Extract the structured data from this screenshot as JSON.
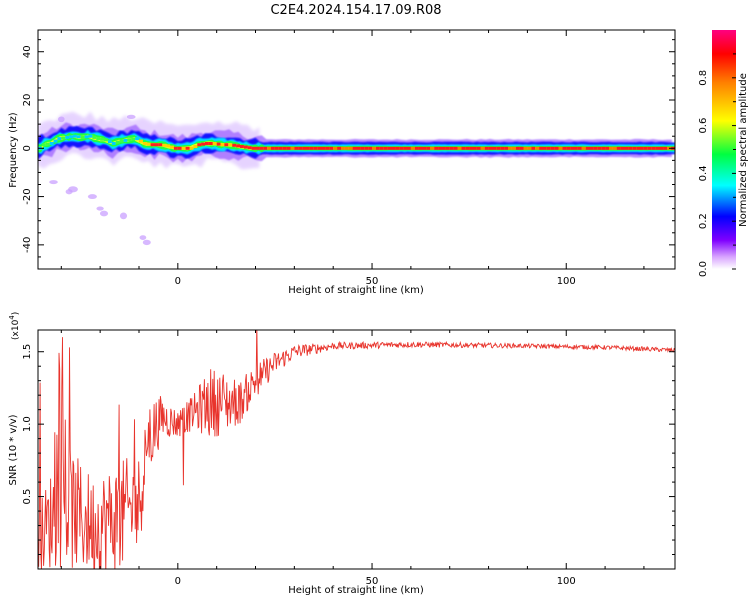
{
  "title": "C2E4.2024.154.17.09.R08",
  "chart_data": [
    {
      "type": "heatmap",
      "xlabel": "Height of straight line (km)",
      "ylabel": "Frequency (Hz)",
      "xlim": [
        -36,
        128
      ],
      "ylim": [
        -50,
        49
      ],
      "xticks": [
        0,
        50,
        100
      ],
      "yticks": [
        40,
        20,
        0,
        -20,
        -40
      ],
      "colorbar": {
        "label": "Normalized spectral amplitude",
        "range": [
          0,
          1
        ],
        "ticks": [
          "0.0",
          "0.2",
          "0.4",
          "0.6",
          "0.8"
        ],
        "colormap": [
          "#ffffff",
          "#e6b3ff",
          "#8000ff",
          "#0000ff",
          "#00ffff",
          "#00ff00",
          "#ffff00",
          "#ff8000",
          "#ff0000",
          "#ff0080"
        ]
      },
      "ridge": [
        {
          "x": -35,
          "f": 1.5
        },
        {
          "x": -33,
          "f": 2
        },
        {
          "x": -31,
          "f": 4
        },
        {
          "x": -29,
          "f": 4.5
        },
        {
          "x": -27,
          "f": 5
        },
        {
          "x": -25,
          "f": 4.5
        },
        {
          "x": -23,
          "f": 5
        },
        {
          "x": -21,
          "f": 4
        },
        {
          "x": -19,
          "f": 3.5
        },
        {
          "x": -17,
          "f": 2
        },
        {
          "x": -15,
          "f": 3
        },
        {
          "x": -13,
          "f": 3.5
        },
        {
          "x": -11,
          "f": 4
        },
        {
          "x": -9,
          "f": 2
        },
        {
          "x": -7,
          "f": 1.5
        },
        {
          "x": -5,
          "f": 1.5
        },
        {
          "x": -3,
          "f": 1
        },
        {
          "x": -1,
          "f": 0
        },
        {
          "x": 1,
          "f": 0
        },
        {
          "x": 3,
          "f": 0
        },
        {
          "x": 5,
          "f": 1.5
        },
        {
          "x": 7,
          "f": 2
        },
        {
          "x": 9,
          "f": 2
        },
        {
          "x": 11,
          "f": 1.5
        },
        {
          "x": 13,
          "f": 1.5
        },
        {
          "x": 15,
          "f": 1
        },
        {
          "x": 17,
          "f": 0.5
        },
        {
          "x": 19,
          "f": 0
        },
        {
          "x": 21,
          "f": 0
        },
        {
          "x": 128,
          "f": 0
        }
      ],
      "scatter_spots": [
        {
          "x": -32,
          "f": -14
        },
        {
          "x": -28,
          "f": -18
        },
        {
          "x": -27,
          "f": -17
        },
        {
          "x": -22,
          "f": -20
        },
        {
          "x": -20,
          "f": -25
        },
        {
          "x": -19,
          "f": -27
        },
        {
          "x": -14,
          "f": -28
        },
        {
          "x": -9,
          "f": -37
        },
        {
          "x": -8,
          "f": -39
        },
        {
          "x": -12,
          "f": 13
        },
        {
          "x": -30,
          "f": 12
        }
      ]
    },
    {
      "type": "line",
      "xlabel": "Height of straight line (km)",
      "ylabel": "SNR (10 * v/v)",
      "scale_label": "(x10",
      "scale_exponent": "4",
      "scale_close": ")",
      "xlim": [
        -36,
        128
      ],
      "ylim": [
        0.0,
        1.65
      ],
      "xticks": [
        0,
        50,
        100
      ],
      "yticks": [
        "0.5",
        "1.0",
        "1.5"
      ],
      "color": "#e8342c",
      "series": [
        {
          "anchors": [
            {
              "x": -36,
              "y": 0.2,
              "noise": 0.22
            },
            {
              "x": -30,
              "y": 0.45,
              "noise": 0.45
            },
            {
              "x": -22,
              "y": 0.3,
              "noise": 0.35
            },
            {
              "x": -15,
              "y": 0.35,
              "noise": 0.4
            },
            {
              "x": -10,
              "y": 0.45,
              "noise": 0.35
            },
            {
              "x": -8,
              "y": 0.9,
              "noise": 0.3
            },
            {
              "x": -4,
              "y": 1.05,
              "noise": 0.15
            },
            {
              "x": 0,
              "y": 1.0,
              "noise": 0.1
            },
            {
              "x": 4,
              "y": 1.08,
              "noise": 0.12
            },
            {
              "x": 8,
              "y": 1.15,
              "noise": 0.25
            },
            {
              "x": 12,
              "y": 1.15,
              "noise": 0.22
            },
            {
              "x": 16,
              "y": 1.15,
              "noise": 0.15
            },
            {
              "x": 20,
              "y": 1.3,
              "noise": 0.12
            },
            {
              "x": 25,
              "y": 1.42,
              "noise": 0.08
            },
            {
              "x": 30,
              "y": 1.5,
              "noise": 0.05
            },
            {
              "x": 40,
              "y": 1.54,
              "noise": 0.025
            },
            {
              "x": 60,
              "y": 1.55,
              "noise": 0.02
            },
            {
              "x": 90,
              "y": 1.54,
              "noise": 0.015
            },
            {
              "x": 110,
              "y": 1.53,
              "noise": 0.015
            },
            {
              "x": 128,
              "y": 1.51,
              "noise": 0.015
            }
          ]
        }
      ]
    }
  ]
}
